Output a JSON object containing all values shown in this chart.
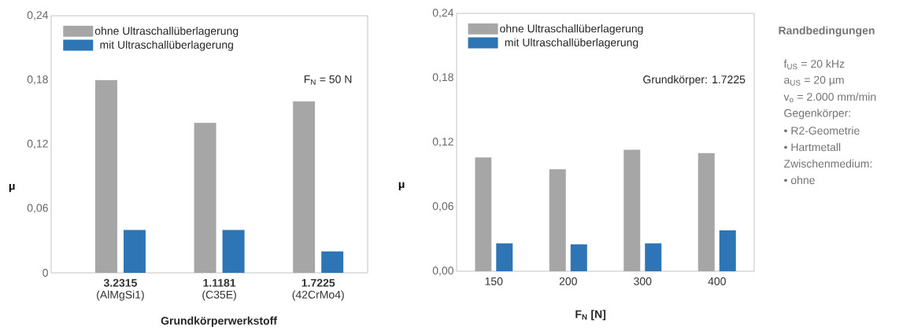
{
  "chart_data": [
    {
      "type": "bar",
      "categories": [
        "**3.2315** (AlMgSi1)",
        "**1.1181** (C35E)",
        "**1.7225** (42CrMo4)"
      ],
      "xlabel": "Grundkörperwerkstoff",
      "ylabel": "μ",
      "ylim": [
        0,
        0.24
      ],
      "yticks": [
        {
          "value": 0,
          "label": "0"
        },
        {
          "value": 0.06,
          "label": "0,06"
        },
        {
          "value": 0.12,
          "label": "0,12"
        },
        {
          "value": 0.18,
          "label": "0,18"
        },
        {
          "value": 0.24,
          "label": "0,24"
        }
      ],
      "legend": "top left",
      "annotations": [
        "F$_{N}$ = 50 N"
      ],
      "series": [
        {
          "name": "ohne Ultraschallüberlagerung",
          "color": "#a6a6a6",
          "values": [
            0.18,
            0.14,
            0.16
          ]
        },
        {
          "name": "mit Ultraschallüberlagerung",
          "color": "#2e75b6",
          "values": [
            0.04,
            0.04,
            0.02
          ]
        }
      ]
    },
    {
      "type": "bar",
      "categories": [
        "150",
        "200",
        "300",
        "400"
      ],
      "xlabel": "F$_{N}$ [N]",
      "ylabel": "μ",
      "ylim": [
        0,
        0.24
      ],
      "yticks": [
        {
          "value": 0,
          "label": "0,00"
        },
        {
          "value": 0.06,
          "label": "0,06"
        },
        {
          "value": 0.12,
          "label": "0,12"
        },
        {
          "value": 0.18,
          "label": "0,18"
        },
        {
          "value": 0.24,
          "label": "0,24"
        }
      ],
      "legend": "top left",
      "annotations": [
        "Grundkörper: 1.7225"
      ],
      "series": [
        {
          "name": "ohne Ultraschallüberlagerung",
          "color": "#a6a6a6",
          "values": [
            0.106,
            0.095,
            0.113,
            0.11
          ]
        },
        {
          "name": "mit Ultraschallüberlagerung",
          "color": "#2e75b6",
          "values": [
            0.026,
            0.025,
            0.026,
            0.038
          ]
        }
      ]
    },
    {
      "type": "other",
      "title": "Randbedingungen",
      "annotations": [
        "f$_{US}$ = 20 kHz",
        "a$_{US}$ = 20 µm",
        "v$_{o}$ = 2.000 mm/min",
        "Gegenkörper:",
        "• R2-Geometrie",
        "• Hartmetall",
        "Zwischenmedium:",
        "• ohne"
      ]
    }
  ]
}
